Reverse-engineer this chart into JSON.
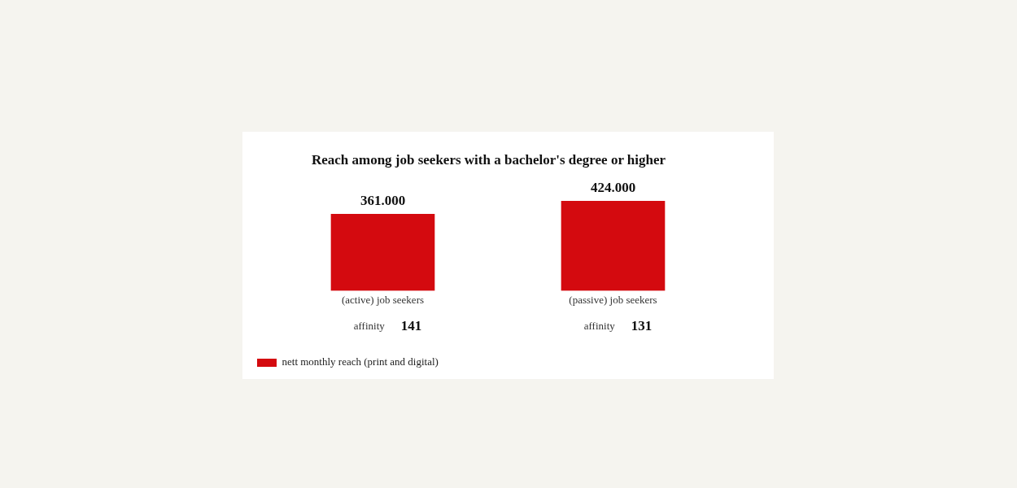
{
  "chart_data": {
    "type": "bar",
    "title": "Reach among job seekers with a bachelor's degree or higher",
    "categories": [
      "(active) job seekers",
      "(passive) job seekers"
    ],
    "series": [
      {
        "name": "nett monthly reach (print and digital)",
        "color": "#d40a0f",
        "values": [
          361000,
          424000
        ],
        "value_labels": [
          "361.000",
          "424.000"
        ]
      }
    ],
    "annotations": [
      "affinity",
      "141",
      "affinity",
      "131"
    ],
    "tick_labels": "x",
    "legend": "bottom left"
  }
}
